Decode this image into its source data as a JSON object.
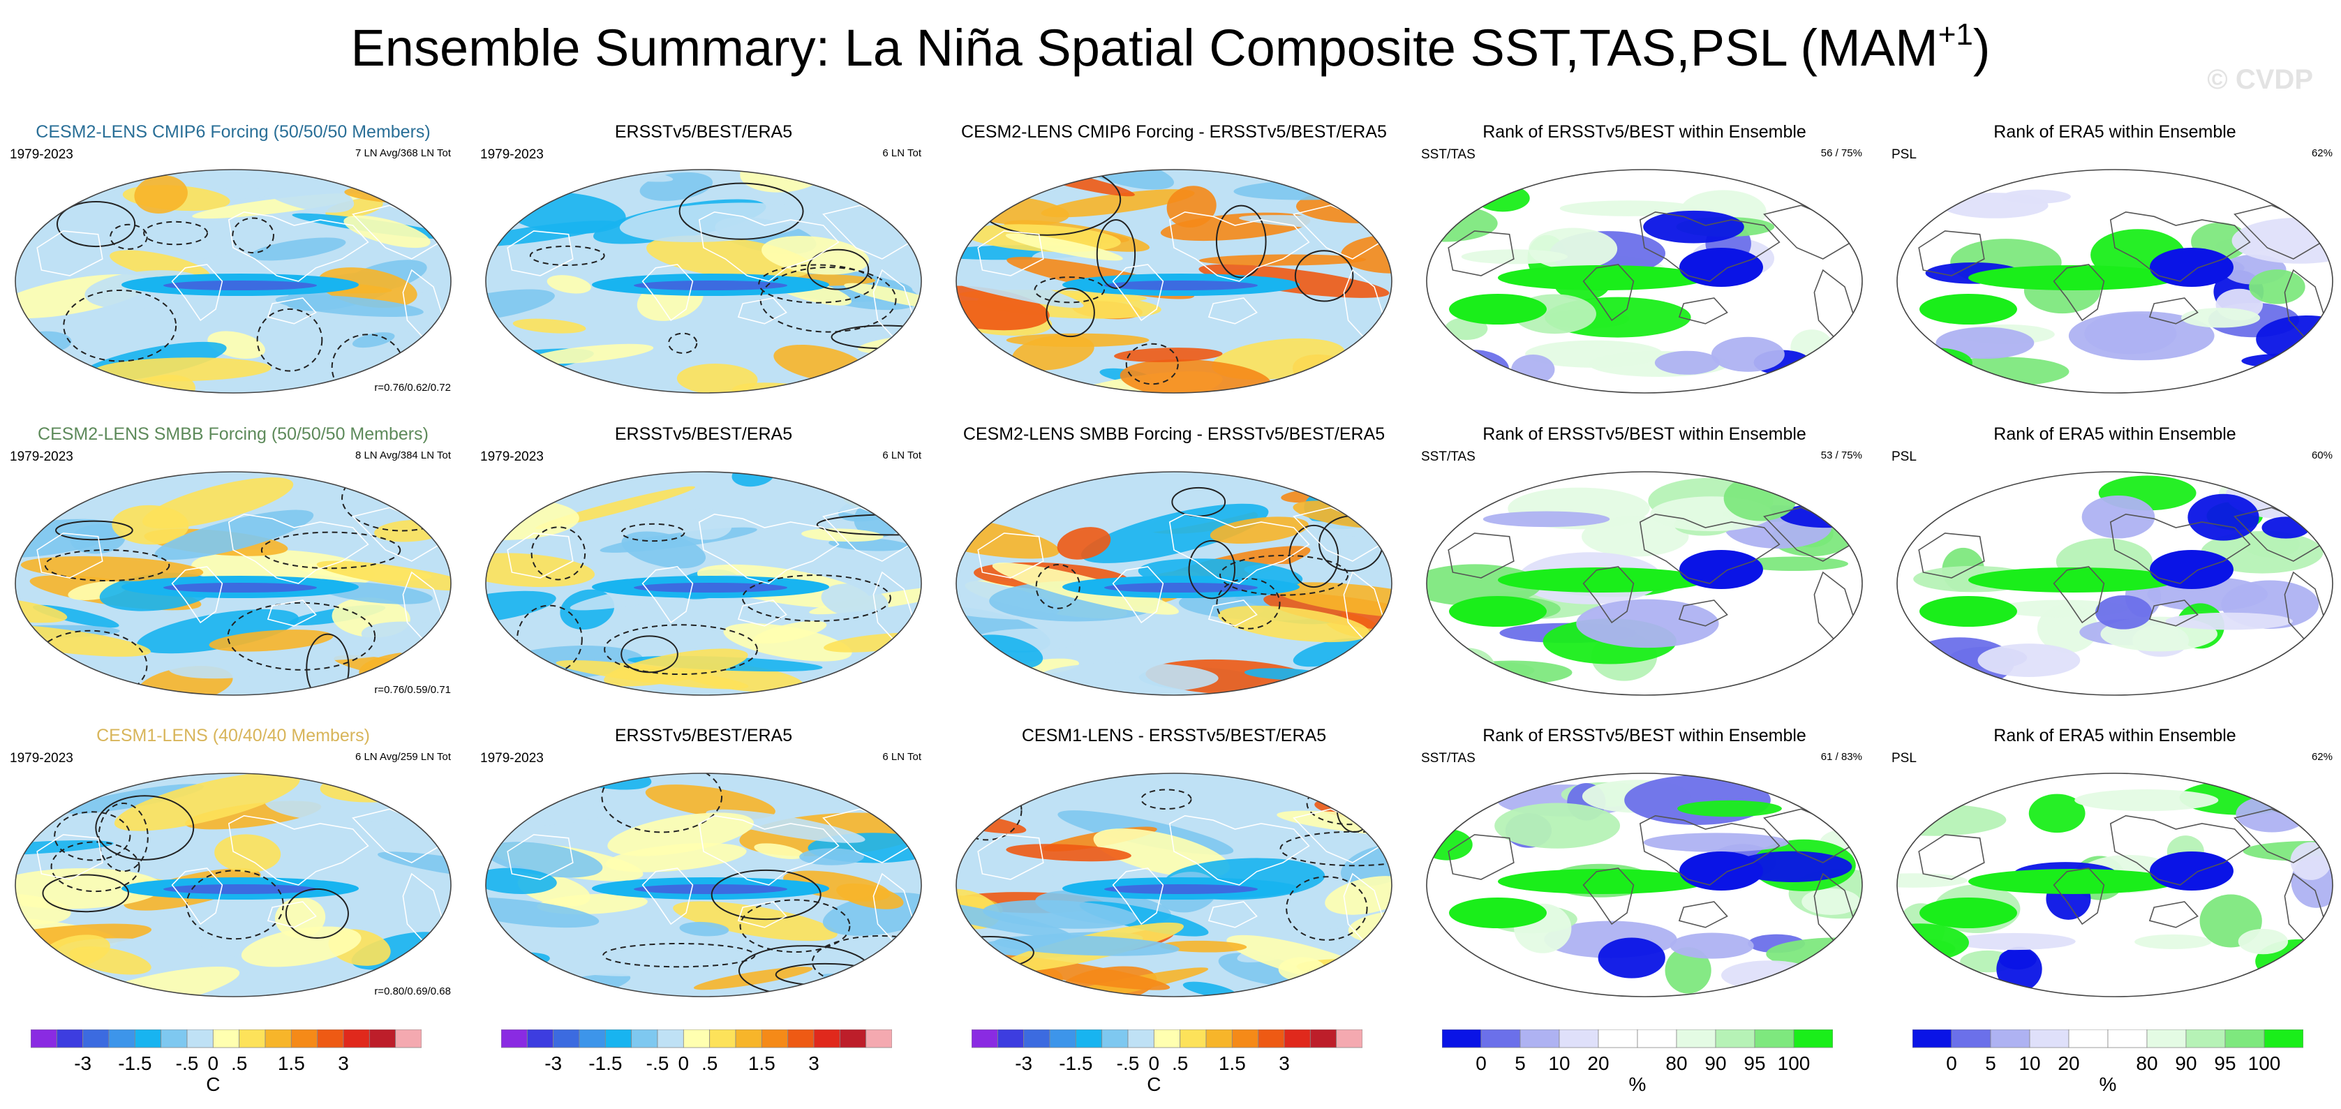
{
  "figure": {
    "title_main": "Ensemble Summary: La Niña Spatial Composite SST,TAS,PSL (MAM",
    "title_sup": "+1",
    "title_close": ")",
    "watermark": "© CVDP"
  },
  "chart_data": {
    "type": "heatmap",
    "description_type": "global map panels",
    "rows": [
      {
        "panels": [
          {
            "kind": "anom",
            "title": "CESM2-LENS CMIP6 Forcing (50/50/50 Members)",
            "title_color": "blue",
            "left": "1979-2023",
            "right": "7 LN Avg/368 LN Tot",
            "corr": "r=0.76/0.62/0.72"
          },
          {
            "kind": "anom",
            "title": "ERSSTv5/BEST/ERA5",
            "left": "1979-2023",
            "right": "6 LN Tot",
            "corr": ""
          },
          {
            "kind": "diff",
            "title": "CESM2-LENS CMIP6 Forcing - ERSSTv5/BEST/ERA5",
            "left": "",
            "right": "",
            "corr": ""
          },
          {
            "kind": "rank",
            "title": "Rank of ERSSTv5/BEST within Ensemble",
            "left": "SST/TAS",
            "right": "56 /  75%",
            "corr": ""
          },
          {
            "kind": "rank",
            "title": "Rank of ERA5 within Ensemble",
            "left": "PSL",
            "right": "62%",
            "corr": ""
          }
        ]
      },
      {
        "panels": [
          {
            "kind": "anom",
            "title": "CESM2-LENS SMBB Forcing (50/50/50 Members)",
            "title_color": "green",
            "left": "1979-2023",
            "right": "8 LN Avg/384 LN Tot",
            "corr": "r=0.76/0.59/0.71"
          },
          {
            "kind": "anom",
            "title": "ERSSTv5/BEST/ERA5",
            "left": "1979-2023",
            "right": "6 LN Tot",
            "corr": ""
          },
          {
            "kind": "diff",
            "title": "CESM2-LENS SMBB Forcing - ERSSTv5/BEST/ERA5",
            "left": "",
            "right": "",
            "corr": ""
          },
          {
            "kind": "rank",
            "title": "Rank of ERSSTv5/BEST within Ensemble",
            "left": "SST/TAS",
            "right": "53 /  75%",
            "corr": ""
          },
          {
            "kind": "rank",
            "title": "Rank of ERA5 within Ensemble",
            "left": "PSL",
            "right": "60%",
            "corr": ""
          }
        ]
      },
      {
        "panels": [
          {
            "kind": "anom",
            "title": "CESM1-LENS (40/40/40 Members)",
            "title_color": "gold",
            "left": "1979-2023",
            "right": "6 LN Avg/259 LN Tot",
            "corr": "r=0.80/0.69/0.68"
          },
          {
            "kind": "anom",
            "title": "ERSSTv5/BEST/ERA5",
            "left": "1979-2023",
            "right": "6 LN Tot",
            "corr": ""
          },
          {
            "kind": "diff",
            "title": "CESM1-LENS - ERSSTv5/BEST/ERA5",
            "left": "",
            "right": "",
            "corr": ""
          },
          {
            "kind": "rank",
            "title": "Rank of ERSSTv5/BEST within Ensemble",
            "left": "SST/TAS",
            "right": "61 /  83%",
            "corr": ""
          },
          {
            "kind": "rank",
            "title": "Rank of ERA5 within Ensemble",
            "left": "PSL",
            "right": "62%",
            "corr": ""
          }
        ]
      }
    ],
    "colorbars": [
      {
        "kind": "anom",
        "unit": "C",
        "colors": [
          "#8a2be2",
          "#3d3de0",
          "#3c6be0",
          "#3d95ea",
          "#18b4f0",
          "#7ec8f0",
          "#bfe1f5",
          "#ffffb0",
          "#fde25a",
          "#f7b52a",
          "#f58a18",
          "#ee5a14",
          "#e0291c",
          "#bd1e2a",
          "#f4a9b0"
        ],
        "ticks": [
          "-3",
          "-1.5",
          "-.5",
          "0",
          ".5",
          "1.5",
          "3"
        ]
      },
      {
        "kind": "anom",
        "unit": "",
        "colors": [
          "#8a2be2",
          "#3d3de0",
          "#3c6be0",
          "#3d95ea",
          "#18b4f0",
          "#7ec8f0",
          "#bfe1f5",
          "#ffffb0",
          "#fde25a",
          "#f7b52a",
          "#f58a18",
          "#ee5a14",
          "#e0291c",
          "#bd1e2a",
          "#f4a9b0"
        ],
        "ticks": [
          "-3",
          "-1.5",
          "-.5",
          "0",
          ".5",
          "1.5",
          "3"
        ]
      },
      {
        "kind": "anom",
        "unit": "C",
        "colors": [
          "#8a2be2",
          "#3d3de0",
          "#3c6be0",
          "#3d95ea",
          "#18b4f0",
          "#7ec8f0",
          "#bfe1f5",
          "#ffffb0",
          "#fde25a",
          "#f7b52a",
          "#f58a18",
          "#ee5a14",
          "#e0291c",
          "#bd1e2a",
          "#f4a9b0"
        ],
        "ticks": [
          "-3",
          "-1.5",
          "-.5",
          "0",
          ".5",
          "1.5",
          "3"
        ]
      },
      {
        "kind": "rank",
        "unit": "%",
        "colors": [
          "#0a14e6",
          "#6b70ea",
          "#aeb2f2",
          "#dfe0fa",
          "#ffffff",
          "#ffffff",
          "#e4fbe4",
          "#b6f2b6",
          "#7ee87e",
          "#1aee1a"
        ],
        "ticks": [
          "0",
          "5",
          "10",
          "20",
          "80",
          "90",
          "95",
          "100"
        ]
      },
      {
        "kind": "rank",
        "unit": "%",
        "colors": [
          "#0a14e6",
          "#6b70ea",
          "#aeb2f2",
          "#dfe0fa",
          "#ffffff",
          "#ffffff",
          "#e4fbe4",
          "#b6f2b6",
          "#7ee87e",
          "#1aee1a"
        ],
        "ticks": [
          "0",
          "5",
          "10",
          "20",
          "80",
          "90",
          "95",
          "100"
        ]
      }
    ]
  }
}
